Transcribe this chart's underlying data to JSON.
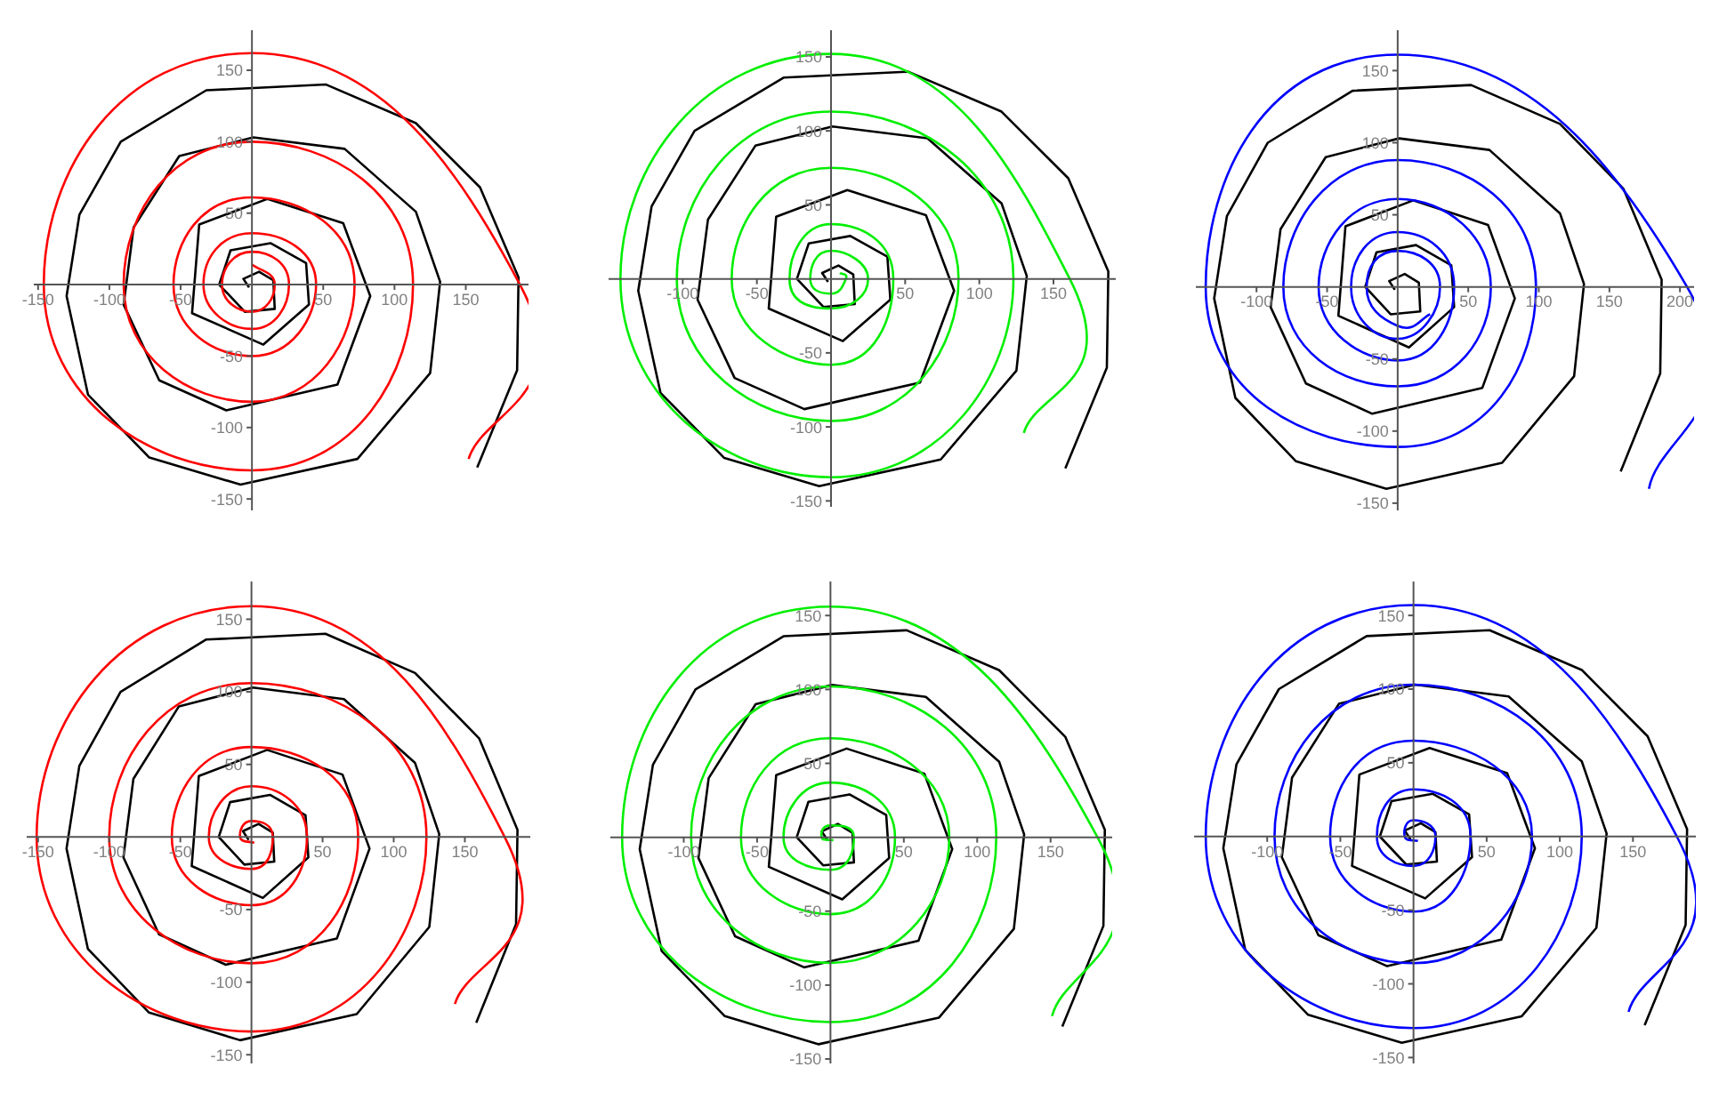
{
  "chart_data": [
    {
      "type": "line",
      "xlim": [
        -153,
        194
      ],
      "ylim": [
        -158,
        178
      ],
      "xticks": [
        -150,
        -100,
        -50,
        50,
        100,
        150
      ],
      "yticks": [
        -150,
        -100,
        -50,
        50,
        100,
        150
      ],
      "series": [
        {
          "color": "#000000",
          "x": [
            -2,
            -6,
            5,
            15,
            16,
            -5,
            -23,
            -15,
            13,
            38,
            40,
            8,
            -42,
            -37,
            11,
            64,
            83,
            60,
            -18,
            -65,
            -90,
            -83,
            -51,
            1,
            65,
            115,
            132,
            125,
            74,
            -8,
            -72,
            -115,
            -130,
            -121,
            -92,
            -32,
            52,
            115,
            160,
            187,
            186,
            158
          ],
          "values": [
            -2,
            4,
            9,
            3,
            -17,
            -19,
            0,
            24,
            29,
            15,
            -14,
            -42,
            -20,
            42,
            60,
            43,
            -8,
            -70,
            -88,
            -67,
            -14,
            40,
            90,
            103,
            95,
            51,
            2,
            -62,
            -122,
            -140,
            -121,
            -77,
            -8,
            49,
            100,
            136,
            140,
            113,
            68,
            5,
            -60,
            -128
          ]
        },
        {
          "color": "#ff0000",
          "x": [
            0,
            16,
            0,
            -21,
            0,
            26,
            0,
            -34,
            0,
            45,
            0,
            -55,
            0,
            72,
            0,
            -90,
            0,
            113,
            0,
            -146,
            0,
            188,
            152
          ],
          "values": [
            14,
            0,
            -19,
            0,
            23,
            0,
            -31,
            0,
            36,
            0,
            -50,
            0,
            61,
            0,
            -82,
            0,
            100,
            0,
            -130,
            0,
            162,
            0,
            -122
          ]
        }
      ]
    },
    {
      "type": "line",
      "xlim": [
        -150,
        192
      ],
      "ylim": [
        -154,
        168
      ],
      "xticks": [
        -100,
        -50,
        50,
        100,
        150
      ],
      "yticks": [
        -150,
        -100,
        -50,
        50,
        100,
        150
      ],
      "series": [
        {
          "color": "#000000",
          "x": [
            -2,
            -6,
            5,
            15,
            16,
            -5,
            -23,
            -15,
            13,
            38,
            40,
            8,
            -42,
            -37,
            11,
            64,
            83,
            60,
            -18,
            -65,
            -90,
            -83,
            -51,
            1,
            65,
            115,
            132,
            125,
            74,
            -8,
            -72,
            -115,
            -130,
            -121,
            -92,
            -32,
            52,
            115,
            160,
            187,
            186,
            158
          ],
          "values": [
            -2,
            4,
            9,
            3,
            -17,
            -19,
            0,
            24,
            29,
            15,
            -14,
            -42,
            -20,
            42,
            60,
            43,
            -8,
            -70,
            -88,
            -67,
            -14,
            40,
            90,
            103,
            95,
            51,
            2,
            -62,
            -122,
            -140,
            -121,
            -77,
            -8,
            49,
            100,
            136,
            140,
            113,
            68,
            5,
            -60,
            -128
          ]
        },
        {
          "color": "#00ee00",
          "x": [
            6,
            10,
            0,
            -14,
            0,
            25,
            0,
            -28,
            0,
            42,
            0,
            -67,
            0,
            86,
            0,
            -104,
            0,
            123,
            0,
            -142,
            0,
            161,
            130
          ],
          "values": [
            4,
            0,
            -10,
            0,
            19,
            0,
            -20,
            0,
            37,
            0,
            -58,
            0,
            75,
            0,
            -96,
            0,
            113,
            0,
            -134,
            0,
            152,
            0,
            -104
          ]
        }
      ]
    },
    {
      "type": "line",
      "xlim": [
        -143,
        210
      ],
      "ylim": [
        -155,
        178
      ],
      "xticks": [
        -100,
        -50,
        50,
        100,
        150,
        200
      ],
      "yticks": [
        -150,
        -100,
        -50,
        50,
        100,
        150
      ],
      "series": [
        {
          "color": "#000000",
          "x": [
            -2,
            -6,
            5,
            15,
            16,
            -5,
            -23,
            -15,
            13,
            38,
            40,
            8,
            -42,
            -37,
            11,
            64,
            83,
            60,
            -18,
            -65,
            -90,
            -83,
            -51,
            1,
            65,
            115,
            132,
            125,
            74,
            -8,
            -72,
            -115,
            -130,
            -121,
            -92,
            -32,
            52,
            115,
            160,
            187,
            186,
            158
          ],
          "values": [
            -2,
            4,
            9,
            3,
            -17,
            -19,
            0,
            24,
            29,
            15,
            -14,
            -42,
            -20,
            42,
            60,
            43,
            -8,
            -70,
            -88,
            -67,
            -14,
            40,
            90,
            103,
            95,
            51,
            2,
            -62,
            -122,
            -140,
            -121,
            -77,
            -8,
            49,
            100,
            136,
            140,
            113,
            68,
            5,
            -60,
            -128
          ]
        },
        {
          "color": "#0000ff",
          "x": [
            23,
            0,
            -22,
            0,
            30,
            0,
            -33,
            0,
            40,
            0,
            -56,
            0,
            66,
            0,
            -81,
            0,
            98,
            0,
            -136,
            0,
            205,
            178
          ],
          "values": [
            -19,
            -27,
            0,
            25,
            0,
            -36,
            0,
            38,
            0,
            -51,
            0,
            61,
            0,
            -69,
            0,
            88,
            0,
            -111,
            0,
            161,
            0,
            -140
          ]
        }
      ]
    },
    {
      "type": "line",
      "xlim": [
        -158,
        196
      ],
      "ylim": [
        -156,
        176
      ],
      "xticks": [
        -150,
        -100,
        -50,
        50,
        100,
        150
      ],
      "yticks": [
        -150,
        -100,
        -50,
        50,
        100,
        150
      ],
      "series": [
        {
          "color": "#000000",
          "x": [
            -2,
            -6,
            5,
            15,
            16,
            -5,
            -23,
            -15,
            13,
            38,
            40,
            8,
            -42,
            -37,
            11,
            64,
            83,
            60,
            -18,
            -65,
            -90,
            -83,
            -51,
            1,
            65,
            115,
            132,
            125,
            74,
            -8,
            -72,
            -115,
            -130,
            -121,
            -92,
            -32,
            52,
            115,
            160,
            187,
            186,
            158
          ],
          "values": [
            -2,
            4,
            9,
            3,
            -17,
            -19,
            0,
            24,
            29,
            15,
            -14,
            -42,
            -20,
            42,
            60,
            43,
            -8,
            -70,
            -88,
            -67,
            -14,
            40,
            90,
            103,
            95,
            51,
            2,
            -62,
            -122,
            -140,
            -121,
            -77,
            -8,
            49,
            100,
            136,
            140,
            113,
            68,
            5,
            -60,
            -128
          ]
        },
        {
          "color": "#ff0000",
          "x": [
            2,
            -8,
            0,
            15,
            0,
            -30,
            0,
            39,
            0,
            -56,
            0,
            75,
            0,
            -100,
            0,
            123,
            0,
            -151,
            0,
            178,
            143
          ],
          "values": [
            -4,
            0,
            11,
            0,
            -22,
            0,
            35,
            0,
            -47,
            0,
            62,
            0,
            -87,
            0,
            106,
            0,
            -134,
            0,
            159,
            0,
            -115
          ]
        }
      ]
    },
    {
      "type": "line",
      "xlim": [
        -150,
        192
      ],
      "ylim": [
        -153,
        173
      ],
      "xticks": [
        -100,
        -50,
        50,
        100,
        150
      ],
      "yticks": [
        -150,
        -100,
        -50,
        50,
        100,
        150
      ],
      "series": [
        {
          "color": "#000000",
          "x": [
            -2,
            -6,
            5,
            15,
            16,
            -5,
            -23,
            -15,
            13,
            38,
            40,
            8,
            -42,
            -37,
            11,
            64,
            83,
            60,
            -18,
            -65,
            -90,
            -83,
            -51,
            1,
            65,
            115,
            132,
            125,
            74,
            -8,
            -72,
            -115,
            -130,
            -121,
            -92,
            -32,
            52,
            115,
            160,
            187,
            186,
            158
          ],
          "values": [
            -2,
            4,
            9,
            3,
            -17,
            -19,
            0,
            24,
            29,
            15,
            -14,
            -42,
            -20,
            42,
            60,
            43,
            -8,
            -70,
            -88,
            -67,
            -14,
            40,
            90,
            103,
            95,
            51,
            2,
            -62,
            -122,
            -140,
            -121,
            -77,
            -8,
            49,
            100,
            136,
            140,
            113,
            68,
            5,
            -60,
            -128
          ]
        },
        {
          "color": "#00ee00",
          "x": [
            2,
            -6,
            0,
            16,
            0,
            -32,
            0,
            44,
            0,
            -61,
            0,
            81,
            0,
            -95,
            0,
            113,
            0,
            -142,
            0,
            182,
            151
          ],
          "values": [
            -2,
            0,
            8,
            0,
            -22,
            0,
            37,
            0,
            -52,
            0,
            67,
            0,
            -85,
            0,
            102,
            0,
            -125,
            0,
            156,
            0,
            -121
          ]
        }
      ]
    },
    {
      "type": "line",
      "xlim": [
        -150,
        193
      ],
      "ylim": [
        -154,
        173
      ],
      "xticks": [
        -100,
        -50,
        50,
        100,
        150
      ],
      "yticks": [
        -150,
        -100,
        -50,
        50,
        100,
        150
      ],
      "series": [
        {
          "color": "#000000",
          "x": [
            -2,
            -6,
            5,
            15,
            16,
            -5,
            -23,
            -15,
            13,
            38,
            40,
            8,
            -42,
            -37,
            11,
            64,
            83,
            60,
            -18,
            -65,
            -90,
            -83,
            -51,
            1,
            65,
            115,
            132,
            125,
            74,
            -8,
            -72,
            -115,
            -130,
            -121,
            -92,
            -32,
            52,
            115,
            160,
            187,
            186,
            158
          ],
          "values": [
            -2,
            4,
            9,
            3,
            -17,
            -19,
            0,
            24,
            29,
            15,
            -14,
            -42,
            -20,
            42,
            60,
            43,
            -8,
            -70,
            -88,
            -67,
            -14,
            40,
            90,
            103,
            95,
            51,
            2,
            -62,
            -122,
            -140,
            -121,
            -77,
            -8,
            49,
            100,
            136,
            140,
            113,
            68,
            5,
            -60,
            -128
          ]
        },
        {
          "color": "#0000ff",
          "x": [
            3,
            -6,
            0,
            15,
            0,
            -25,
            0,
            39,
            0,
            -57,
            0,
            81,
            0,
            -95,
            0,
            115,
            0,
            -142,
            0,
            180,
            147
          ],
          "values": [
            -3,
            0,
            11,
            0,
            -20,
            0,
            32,
            0,
            -51,
            0,
            65,
            0,
            -86,
            0,
            103,
            0,
            -130,
            0,
            157,
            0,
            -119
          ]
        }
      ]
    }
  ]
}
